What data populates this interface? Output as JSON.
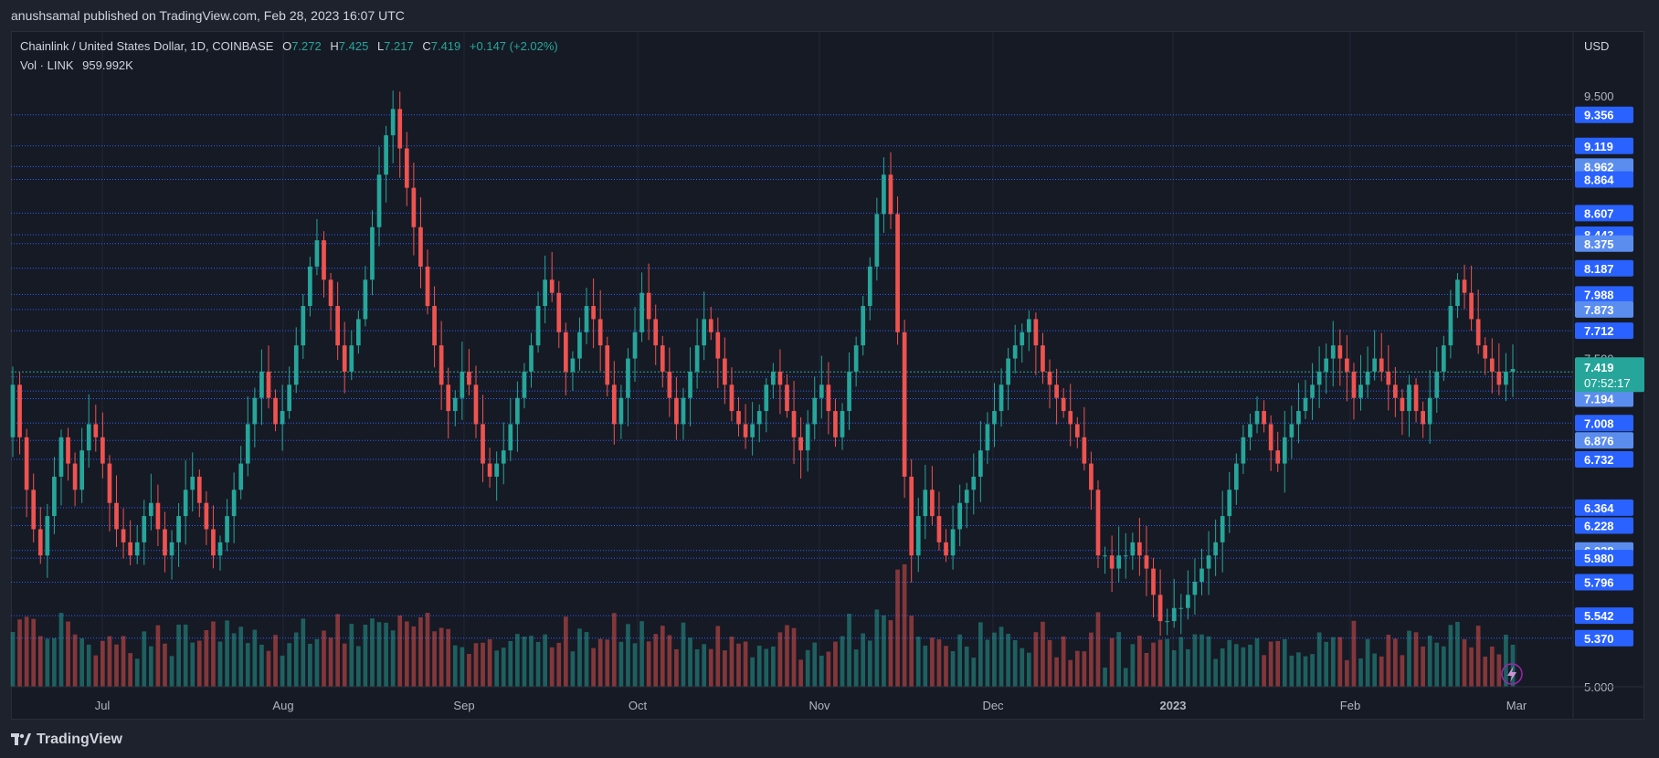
{
  "publisher": "anushsamal published on TradingView.com, Feb 28, 2023 16:07 UTC",
  "legend": {
    "symbol": "Chainlink / United States Dollar, 1D, COINBASE",
    "o_label": "O",
    "o": "7.272",
    "h_label": "H",
    "h": "7.425",
    "l_label": "L",
    "l": "7.217",
    "c_label": "C",
    "c": "7.419",
    "change": "+0.147 (+2.02%)",
    "vol_label": "Vol · LINK",
    "vol": "959.992K"
  },
  "currency": "USD",
  "footer": {
    "brand": "TradingView"
  },
  "colors": {
    "up": "#26a69a",
    "down": "#ef5350",
    "level_line": "#2962ff",
    "label_bg": "#2962ff",
    "label_bg_light": "#5b8def",
    "price_tag": "#26a69a"
  },
  "chart_data": {
    "type": "candlestick",
    "symbol": "LINKUSD",
    "interval": "1D",
    "y_axis_ticks": [
      "9.500",
      "7.500",
      "5.000"
    ],
    "x_axis_ticks": [
      "Jul",
      "Aug",
      "Sep",
      "Oct",
      "Nov",
      "Dec",
      "2023",
      "Feb",
      "Mar"
    ],
    "ylim": [
      5.0,
      9.6
    ],
    "current_price": "7.419",
    "countdown": "07:52:17",
    "levels": [
      {
        "value": "9.356",
        "style": "dark"
      },
      {
        "value": "9.119",
        "style": "dark"
      },
      {
        "value": "8.962",
        "style": "light"
      },
      {
        "value": "8.864",
        "style": "dark"
      },
      {
        "value": "8.607",
        "style": "dark"
      },
      {
        "value": "8.443",
        "style": "dark"
      },
      {
        "value": "8.375",
        "style": "light"
      },
      {
        "value": "8.187",
        "style": "dark"
      },
      {
        "value": "7.988",
        "style": "dark"
      },
      {
        "value": "7.873",
        "style": "light"
      },
      {
        "value": "7.712",
        "style": "dark"
      },
      {
        "value": "7.360",
        "style": "dark"
      },
      {
        "value": "7.253",
        "style": "light"
      },
      {
        "value": "7.194",
        "style": "light"
      },
      {
        "value": "7.008",
        "style": "dark"
      },
      {
        "value": "6.876",
        "style": "light"
      },
      {
        "value": "6.732",
        "style": "dark"
      },
      {
        "value": "6.364",
        "style": "dark"
      },
      {
        "value": "6.228",
        "style": "dark"
      },
      {
        "value": "6.038",
        "style": "light"
      },
      {
        "value": "5.980",
        "style": "dark"
      },
      {
        "value": "5.796",
        "style": "dark"
      },
      {
        "value": "5.542",
        "style": "dark"
      },
      {
        "value": "5.370",
        "style": "dark"
      }
    ],
    "closes": [
      7.3,
      6.9,
      6.5,
      6.2,
      6.0,
      6.3,
      6.6,
      6.9,
      6.7,
      6.5,
      6.8,
      7.0,
      6.9,
      6.7,
      6.4,
      6.2,
      6.1,
      6.0,
      6.1,
      6.3,
      6.4,
      6.2,
      6.0,
      6.1,
      6.3,
      6.5,
      6.6,
      6.4,
      6.2,
      6.0,
      6.1,
      6.3,
      6.5,
      6.7,
      7.0,
      7.2,
      7.4,
      7.2,
      7.0,
      7.1,
      7.3,
      7.6,
      7.9,
      8.2,
      8.4,
      8.1,
      7.9,
      7.6,
      7.4,
      7.6,
      7.8,
      8.1,
      8.5,
      8.9,
      9.2,
      9.4,
      9.1,
      8.8,
      8.5,
      8.2,
      7.9,
      7.6,
      7.3,
      7.1,
      7.2,
      7.4,
      7.3,
      7.0,
      6.7,
      6.6,
      6.7,
      6.8,
      7.0,
      7.2,
      7.4,
      7.6,
      7.9,
      8.1,
      8.0,
      7.7,
      7.4,
      7.5,
      7.7,
      7.9,
      7.8,
      7.6,
      7.3,
      7.0,
      7.2,
      7.5,
      7.7,
      8.0,
      7.8,
      7.6,
      7.4,
      7.2,
      7.0,
      7.2,
      7.4,
      7.6,
      7.8,
      7.7,
      7.5,
      7.3,
      7.1,
      7.0,
      6.9,
      7.0,
      7.1,
      7.3,
      7.4,
      7.3,
      7.1,
      6.9,
      6.8,
      7.0,
      7.2,
      7.3,
      7.1,
      6.9,
      7.1,
      7.4,
      7.6,
      7.9,
      8.2,
      8.6,
      8.9,
      8.6,
      7.7,
      6.6,
      6.0,
      6.3,
      6.5,
      6.3,
      6.1,
      6.0,
      6.2,
      6.4,
      6.5,
      6.6,
      6.8,
      7.0,
      7.1,
      7.3,
      7.5,
      7.6,
      7.7,
      7.8,
      7.6,
      7.4,
      7.3,
      7.2,
      7.1,
      7.0,
      6.9,
      6.7,
      6.5,
      6.0,
      6.0,
      5.9,
      6.0,
      6.0,
      6.1,
      6.0,
      5.9,
      5.7,
      5.5,
      5.5,
      5.6,
      5.6,
      5.7,
      5.8,
      5.9,
      6.0,
      6.1,
      6.3,
      6.5,
      6.7,
      6.9,
      7.0,
      7.1,
      7.0,
      6.8,
      6.7,
      6.9,
      7.0,
      7.1,
      7.2,
      7.3,
      7.4,
      7.5,
      7.6,
      7.5,
      7.4,
      7.2,
      7.3,
      7.4,
      7.5,
      7.4,
      7.3,
      7.2,
      7.1,
      7.3,
      7.1,
      7.0,
      7.2,
      7.4,
      7.6,
      7.9,
      8.1,
      8.0,
      7.8,
      7.6,
      7.5,
      7.4,
      7.3,
      7.4,
      7.42
    ]
  }
}
